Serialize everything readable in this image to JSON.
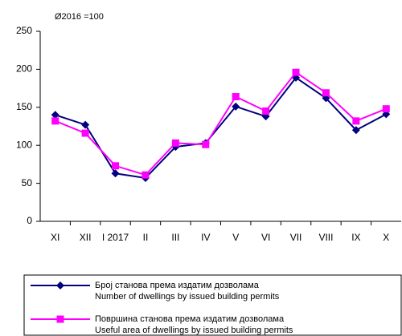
{
  "chart_data": {
    "type": "line",
    "subtitle": "Ø2016 =100",
    "categories": [
      "XI",
      "XII",
      "I 2017",
      "II",
      "III",
      "IV",
      "V",
      "VI",
      "VII",
      "VIII",
      "IX",
      "X"
    ],
    "series": [
      {
        "name": [
          "Број станова према издатим дозволама",
          "Number of dwellings by issued building permits"
        ],
        "color": "#000080",
        "marker": "diamond",
        "values": [
          140,
          127,
          63,
          57,
          98,
          103,
          151,
          138,
          189,
          162,
          120,
          141
        ]
      },
      {
        "name": [
          "Површина станова према издатим дозволама",
          "Useful area of dwellings by issued building permits"
        ],
        "color": "#ff00ff",
        "marker": "square",
        "values": [
          132,
          116,
          73,
          61,
          103,
          101,
          164,
          145,
          196,
          169,
          132,
          148
        ]
      }
    ],
    "ylim": [
      0,
      250
    ],
    "yticks": [
      0,
      50,
      100,
      150,
      200,
      250
    ],
    "grid": false
  }
}
